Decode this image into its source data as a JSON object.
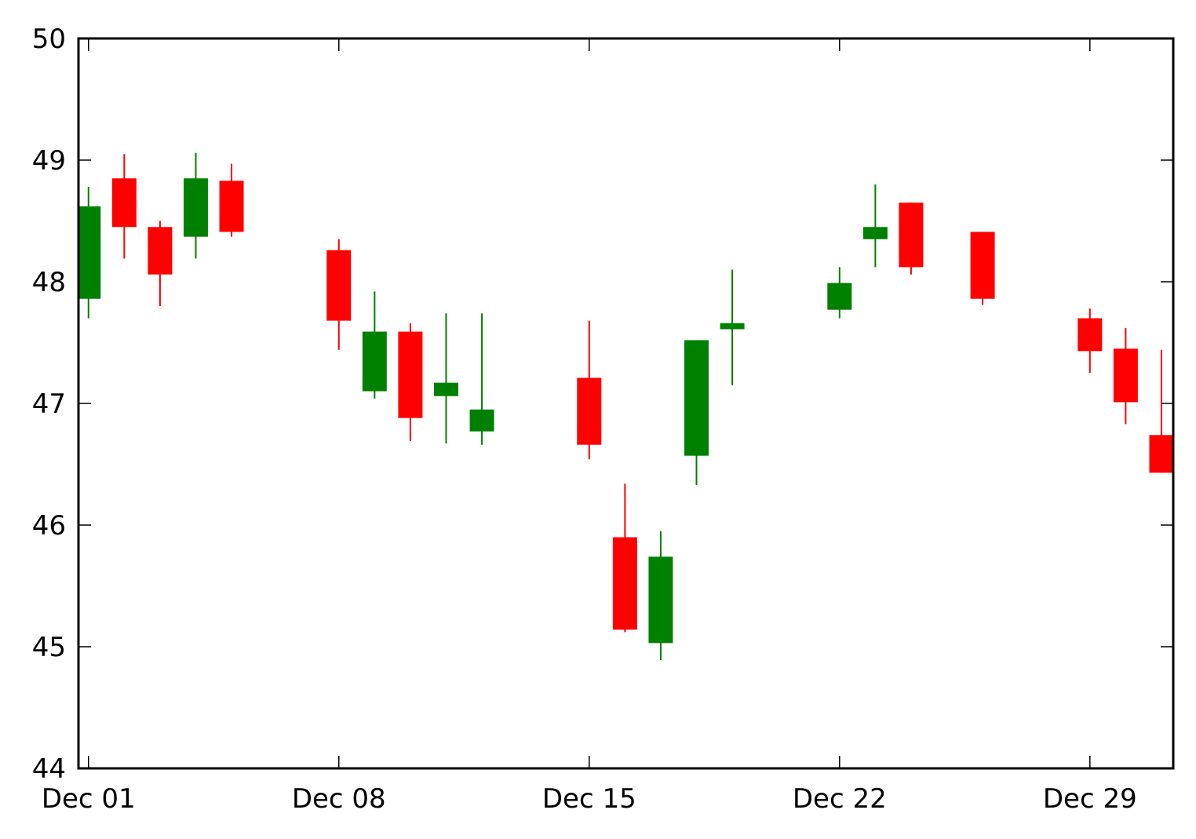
{
  "chart_data": {
    "type": "candlestick",
    "x": [
      1,
      2,
      3,
      4,
      5,
      8,
      9,
      10,
      11,
      12,
      15,
      16,
      17,
      18,
      19,
      22,
      23,
      24,
      26,
      29,
      30,
      31
    ],
    "open": [
      47.86,
      48.85,
      48.45,
      48.37,
      48.83,
      48.26,
      47.1,
      47.59,
      47.06,
      46.77,
      47.21,
      45.9,
      45.03,
      46.57,
      47.61,
      47.77,
      48.35,
      48.65,
      48.41,
      47.7,
      47.45,
      46.74
    ],
    "high": [
      48.78,
      49.05,
      48.5,
      49.06,
      48.97,
      48.35,
      47.92,
      47.66,
      47.74,
      47.74,
      47.68,
      46.34,
      45.95,
      47.52,
      48.1,
      48.12,
      48.8,
      48.65,
      48.41,
      47.78,
      47.62,
      47.44
    ],
    "low": [
      47.7,
      48.19,
      47.8,
      48.19,
      48.37,
      47.44,
      47.04,
      46.69,
      46.67,
      46.66,
      46.54,
      45.12,
      44.89,
      46.33,
      47.15,
      47.7,
      48.12,
      48.06,
      47.81,
      47.25,
      46.83,
      46.43
    ],
    "close": [
      48.62,
      48.45,
      48.06,
      48.85,
      48.41,
      47.68,
      47.59,
      46.88,
      47.17,
      46.95,
      46.66,
      45.14,
      45.74,
      47.52,
      47.66,
      47.99,
      48.45,
      48.12,
      47.86,
      47.43,
      47.01,
      46.43
    ],
    "up_color": "#008000",
    "down_color": "#ff0000",
    "xlim": [
      0.72,
      31.33
    ],
    "xticks": [
      {
        "value": 1,
        "label": "Dec 01"
      },
      {
        "value": 8,
        "label": "Dec 08"
      },
      {
        "value": 15,
        "label": "Dec 15"
      },
      {
        "value": 22,
        "label": "Dec 22"
      },
      {
        "value": 29,
        "label": "Dec 29"
      }
    ],
    "ylim": [
      44,
      50
    ],
    "yticks": [
      44,
      45,
      46,
      47,
      48,
      49,
      50
    ]
  }
}
